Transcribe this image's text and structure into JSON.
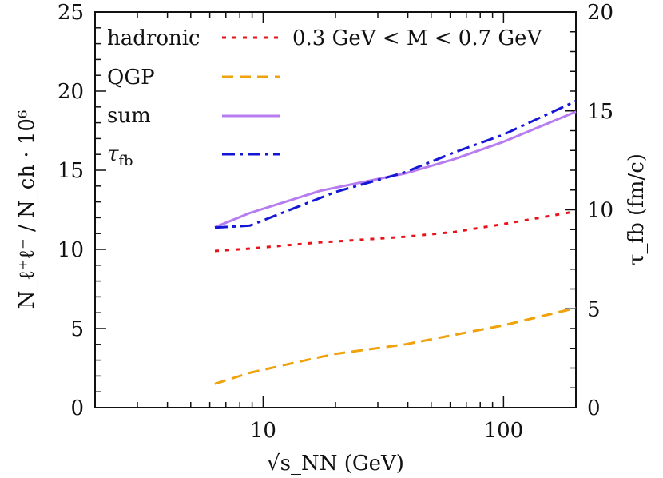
{
  "chart_data": {
    "type": "line",
    "x_scale": "log",
    "xlim": [
      2,
      200
    ],
    "ylim_left": [
      0,
      25
    ],
    "ylim_right": [
      0,
      20
    ],
    "x_ticks_major": [
      10,
      100
    ],
    "x_tick_labels": [
      "10",
      "100"
    ],
    "y_left_ticks": [
      0,
      5,
      10,
      15,
      20,
      25
    ],
    "y_left_tick_labels": [
      "0",
      "5",
      "10",
      "15",
      "20",
      "25"
    ],
    "y_right_ticks": [
      0,
      5,
      10,
      15,
      20
    ],
    "y_right_tick_labels": [
      "0",
      "5",
      "10",
      "15",
      "20"
    ],
    "xlabel": "√s_NN (GeV)",
    "ylabel_left": "N_ℓ⁺ℓ⁻ / N_ch · 10⁶",
    "ylabel_right": "τ_fb (fm/c)",
    "annotation": "0.3 GeV < M < 0.7 GeV",
    "series": [
      {
        "name": "hadronic",
        "label": "hadronic",
        "axis": "left",
        "color": "#e8131a",
        "dash": "dotted",
        "x": [
          6.3,
          8.8,
          17.3,
          20,
          39,
          62.4,
          100,
          200
        ],
        "y": [
          9.9,
          10.05,
          10.45,
          10.5,
          10.8,
          11.1,
          11.6,
          12.4
        ]
      },
      {
        "name": "QGP",
        "label": "QGP",
        "axis": "left",
        "color": "#f0a20c",
        "dash": "dashed",
        "x": [
          6.3,
          8.8,
          17.3,
          20,
          39,
          62.4,
          100,
          200
        ],
        "y": [
          1.5,
          2.2,
          3.2,
          3.4,
          4.0,
          4.6,
          5.2,
          6.3
        ]
      },
      {
        "name": "sum",
        "label": "sum",
        "axis": "left",
        "color": "#b77cf0",
        "dash": "solid",
        "x": [
          6.3,
          8.8,
          17.3,
          20,
          39,
          62.4,
          100,
          200
        ],
        "y": [
          11.4,
          12.3,
          13.7,
          13.9,
          14.8,
          15.7,
          16.8,
          18.7
        ]
      },
      {
        "name": "tau_fb",
        "label": "τ",
        "label_sub": "fb",
        "axis": "right",
        "color": "#1416d6",
        "dash": "dashdot",
        "x": [
          6.3,
          8.8,
          17.3,
          20,
          39,
          62.4,
          100,
          200
        ],
        "y": [
          9.1,
          9.2,
          10.6,
          10.9,
          11.9,
          12.9,
          13.8,
          15.5
        ]
      }
    ]
  }
}
